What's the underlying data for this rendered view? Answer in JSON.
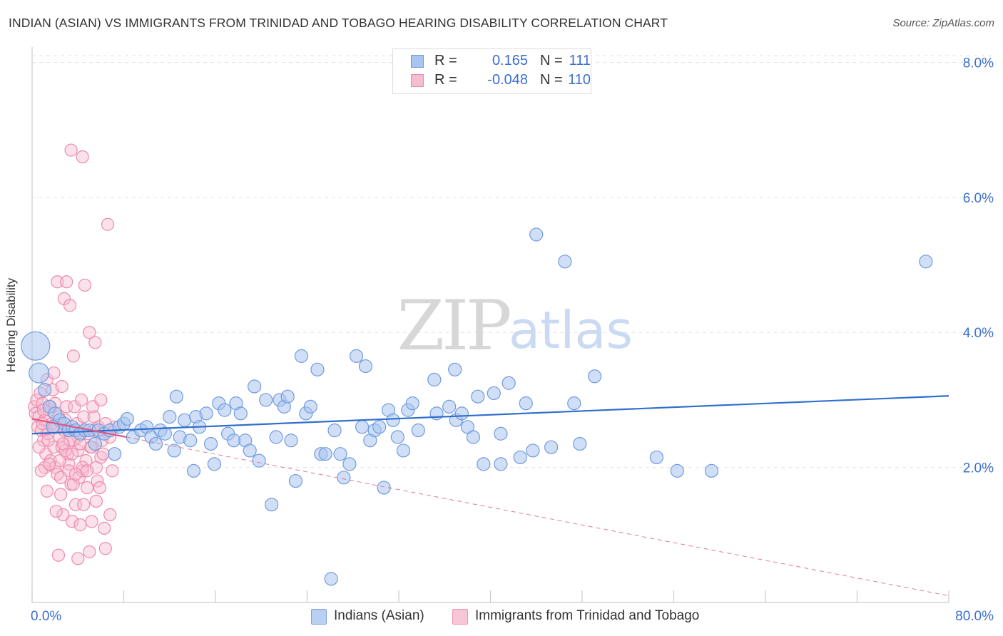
{
  "header": {
    "title": "INDIAN (ASIAN) VS IMMIGRANTS FROM TRINIDAD AND TOBAGO HEARING DISABILITY CORRELATION CHART",
    "source": "Source: ZipAtlas.com"
  },
  "watermark": {
    "zip": "ZIP",
    "atlas": "atlas"
  },
  "legend": {
    "rows": [
      {
        "r_label": "R =",
        "r_value": "0.165",
        "n_label": "N =",
        "n_value": "111"
      },
      {
        "r_label": "R =",
        "r_value": "-0.048",
        "n_label": "N =",
        "n_value": "110"
      }
    ]
  },
  "bottom_legend": [
    "Indians (Asian)",
    "Immigrants from Trinidad and Tobago"
  ],
  "colors": {
    "blue_fill": "#a9c5ef",
    "blue_stroke": "#6f9be0",
    "blue_line": "#2f6fcf",
    "pink_fill": "#f6bdd0",
    "pink_stroke": "#ee8aab",
    "pink_line": "#e0557f",
    "axis_text": "#3a6fd1"
  },
  "chart_data": {
    "type": "scatter",
    "title": "INDIAN (ASIAN) VS IMMIGRANTS FROM TRINIDAD AND TOBAGO HEARING DISABILITY CORRELATION CHART",
    "xlabel": "",
    "ylabel": "Hearing Disability",
    "xlim": [
      0,
      80
    ],
    "ylim": [
      0,
      8.1
    ],
    "x_tick_labels": [
      "0.0%",
      "80.0%"
    ],
    "y_ticks": [
      2.0,
      4.0,
      6.0,
      8.0
    ],
    "y_tick_labels": [
      "2.0%",
      "4.0%",
      "6.0%",
      "8.0%"
    ],
    "grid": true,
    "legend_position": "top-center",
    "series": [
      {
        "name": "Indians (Asian)",
        "R": 0.165,
        "N": 111,
        "trend": {
          "x": [
            0,
            80
          ],
          "y": [
            2.5,
            3.06
          ]
        },
        "points": [
          [
            0.3,
            3.8
          ],
          [
            0.6,
            3.4
          ],
          [
            1.1,
            3.15
          ],
          [
            1.5,
            2.9
          ],
          [
            2.0,
            2.8
          ],
          [
            2.4,
            2.7
          ],
          [
            2.8,
            2.65
          ],
          [
            3.2,
            2.55
          ],
          [
            3.5,
            2.6
          ],
          [
            3.8,
            2.55
          ],
          [
            4.2,
            2.5
          ],
          [
            4.6,
            2.55
          ],
          [
            5.0,
            2.55
          ],
          [
            5.5,
            2.35
          ],
          [
            5.8,
            2.55
          ],
          [
            6.3,
            2.5
          ],
          [
            6.8,
            2.55
          ],
          [
            7.2,
            2.2
          ],
          [
            7.6,
            2.6
          ],
          [
            8.0,
            2.65
          ],
          [
            8.3,
            2.72
          ],
          [
            8.8,
            2.45
          ],
          [
            9.5,
            2.55
          ],
          [
            10.0,
            2.6
          ],
          [
            10.4,
            2.45
          ],
          [
            10.8,
            2.35
          ],
          [
            11.2,
            2.55
          ],
          [
            11.6,
            2.5
          ],
          [
            12.0,
            2.75
          ],
          [
            12.4,
            2.25
          ],
          [
            12.6,
            3.05
          ],
          [
            12.9,
            2.45
          ],
          [
            13.3,
            2.7
          ],
          [
            13.8,
            2.4
          ],
          [
            14.1,
            1.95
          ],
          [
            14.3,
            2.75
          ],
          [
            14.6,
            2.6
          ],
          [
            15.2,
            2.8
          ],
          [
            15.6,
            2.35
          ],
          [
            15.9,
            2.05
          ],
          [
            16.3,
            2.95
          ],
          [
            16.8,
            2.85
          ],
          [
            17.1,
            2.5
          ],
          [
            17.6,
            2.4
          ],
          [
            17.8,
            2.95
          ],
          [
            18.2,
            2.8
          ],
          [
            18.6,
            2.4
          ],
          [
            19.0,
            2.25
          ],
          [
            19.4,
            3.2
          ],
          [
            19.8,
            2.1
          ],
          [
            20.4,
            3.0
          ],
          [
            20.9,
            1.45
          ],
          [
            21.3,
            2.45
          ],
          [
            21.6,
            3.0
          ],
          [
            22.0,
            2.9
          ],
          [
            22.3,
            3.05
          ],
          [
            22.6,
            2.4
          ],
          [
            23.0,
            1.8
          ],
          [
            23.5,
            3.65
          ],
          [
            23.9,
            2.8
          ],
          [
            24.3,
            2.9
          ],
          [
            24.9,
            3.45
          ],
          [
            25.2,
            2.2
          ],
          [
            25.6,
            2.2
          ],
          [
            26.1,
            0.35
          ],
          [
            26.4,
            2.55
          ],
          [
            26.9,
            2.2
          ],
          [
            27.2,
            1.85
          ],
          [
            27.7,
            2.05
          ],
          [
            28.3,
            3.65
          ],
          [
            28.8,
            2.6
          ],
          [
            29.1,
            3.5
          ],
          [
            29.5,
            2.4
          ],
          [
            29.9,
            2.55
          ],
          [
            30.3,
            2.6
          ],
          [
            30.7,
            1.7
          ],
          [
            31.1,
            2.85
          ],
          [
            31.5,
            2.7
          ],
          [
            31.9,
            2.45
          ],
          [
            32.4,
            2.25
          ],
          [
            32.8,
            2.85
          ],
          [
            33.2,
            2.95
          ],
          [
            33.7,
            2.55
          ],
          [
            35.1,
            3.3
          ],
          [
            35.3,
            2.8
          ],
          [
            36.4,
            2.9
          ],
          [
            36.9,
            3.45
          ],
          [
            37.0,
            2.7
          ],
          [
            37.5,
            2.8
          ],
          [
            38.0,
            2.6
          ],
          [
            38.5,
            2.45
          ],
          [
            38.9,
            3.05
          ],
          [
            39.4,
            2.05
          ],
          [
            40.3,
            3.1
          ],
          [
            40.9,
            2.5
          ],
          [
            40.9,
            2.05
          ],
          [
            41.6,
            3.25
          ],
          [
            42.6,
            2.15
          ],
          [
            43.1,
            2.95
          ],
          [
            43.7,
            2.25
          ],
          [
            44.0,
            5.45
          ],
          [
            45.3,
            2.3
          ],
          [
            46.5,
            5.05
          ],
          [
            47.3,
            2.95
          ],
          [
            47.8,
            2.35
          ],
          [
            49.1,
            3.35
          ],
          [
            54.5,
            2.15
          ],
          [
            56.3,
            1.95
          ],
          [
            59.3,
            1.95
          ],
          [
            78.0,
            5.05
          ],
          [
            1.8,
            2.6
          ]
        ]
      },
      {
        "name": "Immigrants from Trinidad and Tobago",
        "R": -0.048,
        "N": 110,
        "trend": {
          "x": [
            0,
            80
          ],
          "y": [
            2.72,
            0.1
          ]
        },
        "trend_solid_to_x": 8.2,
        "points": [
          [
            0.2,
            2.9
          ],
          [
            0.3,
            2.8
          ],
          [
            0.4,
            3.0
          ],
          [
            0.5,
            2.6
          ],
          [
            0.6,
            2.75
          ],
          [
            0.7,
            3.1
          ],
          [
            0.8,
            2.55
          ],
          [
            0.9,
            2.95
          ],
          [
            1.0,
            2.4
          ],
          [
            1.1,
            2.7
          ],
          [
            1.2,
            2.2
          ],
          [
            1.3,
            3.3
          ],
          [
            1.4,
            2.5
          ],
          [
            1.5,
            2.85
          ],
          [
            1.6,
            2.1
          ],
          [
            1.7,
            2.65
          ],
          [
            1.8,
            3.15
          ],
          [
            1.9,
            2.3
          ],
          [
            2.0,
            2.0
          ],
          [
            2.1,
            2.6
          ],
          [
            2.2,
            1.9
          ],
          [
            2.3,
            2.75
          ],
          [
            2.4,
            2.45
          ],
          [
            2.5,
            1.6
          ],
          [
            2.6,
            2.3
          ],
          [
            2.7,
            1.3
          ],
          [
            2.8,
            4.5
          ],
          [
            2.9,
            2.7
          ],
          [
            3.0,
            2.9
          ],
          [
            3.1,
            2.2
          ],
          [
            3.2,
            2.05
          ],
          [
            3.3,
            4.4
          ],
          [
            3.4,
            1.75
          ],
          [
            3.5,
            1.2
          ],
          [
            3.6,
            2.4
          ],
          [
            3.7,
            2.9
          ],
          [
            3.8,
            1.45
          ],
          [
            3.9,
            2.65
          ],
          [
            4.0,
            2.25
          ],
          [
            4.1,
            1.85
          ],
          [
            4.2,
            1.15
          ],
          [
            4.3,
            3.0
          ],
          [
            4.4,
            1.95
          ],
          [
            4.5,
            2.75
          ],
          [
            4.6,
            4.7
          ],
          [
            4.7,
            2.1
          ],
          [
            4.8,
            1.7
          ],
          [
            4.9,
            2.5
          ],
          [
            5.0,
            4.0
          ],
          [
            5.1,
            2.3
          ],
          [
            5.2,
            1.2
          ],
          [
            5.3,
            2.9
          ],
          [
            5.4,
            2.55
          ],
          [
            5.5,
            3.85
          ],
          [
            5.6,
            2.0
          ],
          [
            5.7,
            1.8
          ],
          [
            5.8,
            2.6
          ],
          [
            5.9,
            1.7
          ],
          [
            6.0,
            3.0
          ],
          [
            6.1,
            2.4
          ],
          [
            6.3,
            1.1
          ],
          [
            6.4,
            0.8
          ],
          [
            6.6,
            5.6
          ],
          [
            6.8,
            1.3
          ],
          [
            7.0,
            1.95
          ],
          [
            7.2,
            2.6
          ],
          [
            3.4,
            6.7
          ],
          [
            4.4,
            6.6
          ],
          [
            2.2,
            4.75
          ],
          [
            3.0,
            4.75
          ],
          [
            3.6,
            3.65
          ],
          [
            1.9,
            3.4
          ],
          [
            2.6,
            3.2
          ],
          [
            1.1,
            2.0
          ],
          [
            0.8,
            1.95
          ],
          [
            1.4,
            2.4
          ],
          [
            1.6,
            2.9
          ],
          [
            2.0,
            2.95
          ],
          [
            2.4,
            2.1
          ],
          [
            2.8,
            2.55
          ],
          [
            3.2,
            1.95
          ],
          [
            3.6,
            1.75
          ],
          [
            4.0,
            2.45
          ],
          [
            4.4,
            2.0
          ],
          [
            4.8,
            1.95
          ],
          [
            5.2,
            2.3
          ],
          [
            5.6,
            1.5
          ],
          [
            6.0,
            2.15
          ],
          [
            6.4,
            2.65
          ],
          [
            6.8,
            2.45
          ],
          [
            2.3,
            0.7
          ],
          [
            4.0,
            0.65
          ],
          [
            5.0,
            0.75
          ],
          [
            1.3,
            1.65
          ],
          [
            2.1,
            1.35
          ],
          [
            2.9,
            2.25
          ],
          [
            3.8,
            1.9
          ],
          [
            0.9,
            2.65
          ],
          [
            1.5,
            2.05
          ],
          [
            2.5,
            1.85
          ],
          [
            3.3,
            2.4
          ],
          [
            4.2,
            2.35
          ],
          [
            5.4,
            2.75
          ],
          [
            6.2,
            2.2
          ],
          [
            0.6,
            2.3
          ],
          [
            1.0,
            2.85
          ],
          [
            1.9,
            2.6
          ],
          [
            2.7,
            2.35
          ],
          [
            3.5,
            2.2
          ],
          [
            4.5,
            1.45
          ]
        ]
      }
    ]
  }
}
